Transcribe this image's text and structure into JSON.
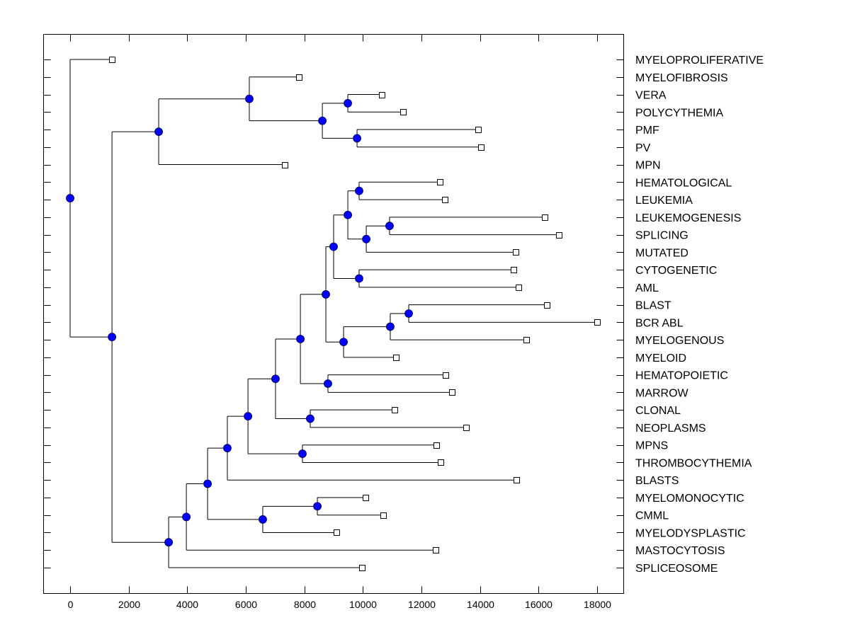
{
  "chart_data": {
    "type": "dendrogram",
    "title": "",
    "xlabel": "",
    "ylabel": "",
    "xlim": [
      -900,
      18900
    ],
    "xticks": [
      0,
      2000,
      4000,
      6000,
      8000,
      10000,
      12000,
      14000,
      16000,
      18000
    ],
    "xtick_labels": [
      "0",
      "2000",
      "4000",
      "6000",
      "8000",
      "10000",
      "12000",
      "14000",
      "16000",
      "18000"
    ],
    "leaf_order": [
      "MYELOPROLIFERATIVE",
      "MYELOFIBROSIS",
      "VERA",
      "POLYCYTHEMIA",
      "PMF",
      "PV",
      "MPN",
      "HEMATOLOGICAL",
      "LEUKEMIA",
      "LEUKEMOGENESIS",
      "SPLICING",
      "MUTATED",
      "CYTOGENETIC",
      "AML",
      "BLAST",
      "BCR ABL",
      "MYELOGENOUS",
      "MYELOID",
      "HEMATOPOIETIC",
      "MARROW",
      "CLONAL",
      "NEOPLASMS",
      "MPNS",
      "THROMBOCYTHEMIA",
      "BLASTS",
      "MYELOMONOCYTIC",
      "CMML",
      "MYELODYSPLASTIC",
      "MASTOCYTOSIS",
      "SPLICEOSOME"
    ],
    "leaves": {
      "MYELOPROLIFERATIVE": 1430,
      "MYELOFIBROSIS": 7815,
      "VERA": 10645,
      "POLYCYTHEMIA": 11370,
      "PMF": 13935,
      "PV": 14030,
      "MPN": 7330,
      "HEMATOLOGICAL": 12630,
      "LEUKEMIA": 12800,
      "LEUKEMOGENESIS": 16210,
      "SPLICING": 16695,
      "MUTATED": 15220,
      "CYTOGENETIC": 15145,
      "AML": 15315,
      "BLAST": 16285,
      "BCR ABL": 18000,
      "MYELOGENOUS": 15580,
      "MYELOID": 11130,
      "HEMATOPOIETIC": 12825,
      "MARROW": 13040,
      "CLONAL": 11080,
      "NEOPLASMS": 13525,
      "MPNS": 12510,
      "THROMBOCYTHEMIA": 12655,
      "BLASTS": 15245,
      "MYELOMONOCYTIC": 10090,
      "CMML": 10695,
      "MYELODYSPLASTIC": 9100,
      "MASTOCYTOSIS": 12485,
      "SPLICEOSOME": 9970
    },
    "tree": {
      "x": 0,
      "children": [
        {
          "leaf": "MYELOPROLIFERATIVE"
        },
        {
          "x": 1430,
          "children": [
            {
              "x": 3025,
              "children": [
                {
                  "x": 6120,
                  "children": [
                    {
                      "leaf": "MYELOFIBROSIS"
                    },
                    {
                      "x": 8615,
                      "children": [
                        {
                          "x": 9485,
                          "children": [
                            {
                              "leaf": "VERA"
                            },
                            {
                              "leaf": "POLYCYTHEMIA"
                            }
                          ]
                        },
                        {
                          "x": 9800,
                          "children": [
                            {
                              "leaf": "PMF"
                            },
                            {
                              "leaf": "PV"
                            }
                          ]
                        }
                      ]
                    }
                  ]
                },
                {
                  "leaf": "MPN"
                }
              ]
            },
            {
              "x": 3365,
              "children": [
                {
                  "x": 3970,
                  "children": [
                    {
                      "x": 4695,
                      "children": [
                        {
                          "x": 5370,
                          "children": [
                            {
                              "x": 6075,
                              "children": [
                                {
                                  "x": 7015,
                                  "children": [
                                    {
                                      "x": 7865,
                                      "children": [
                                        {
                                          "x": 8735,
                                          "children": [
                                            {
                                              "x": 9000,
                                              "children": [
                                                {
                                                  "x": 9485,
                                                  "children": [
                                                    {
                                                      "x": 9870,
                                                      "children": [
                                                        {
                                                          "leaf": "HEMATOLOGICAL"
                                                        },
                                                        {
                                                          "leaf": "LEUKEMIA"
                                                        }
                                                      ]
                                                    },
                                                    {
                                                      "x": 10115,
                                                      "children": [
                                                        {
                                                          "x": 10910,
                                                          "children": [
                                                            {
                                                              "leaf": "LEUKEMOGENESIS"
                                                            },
                                                            {
                                                              "leaf": "SPLICING"
                                                            }
                                                          ]
                                                        },
                                                        {
                                                          "leaf": "MUTATED"
                                                        }
                                                      ]
                                                    }
                                                  ]
                                                },
                                                {
                                                  "x": 9870,
                                                  "children": [
                                                    {
                                                      "leaf": "CYTOGENETIC"
                                                    },
                                                    {
                                                      "leaf": "AML"
                                                    }
                                                  ]
                                                }
                                              ]
                                            },
                                            {
                                              "x": 9340,
                                              "children": [
                                                {
                                                  "x": 10935,
                                                  "children": [
                                                    {
                                                      "x": 11565,
                                                      "children": [
                                                        {
                                                          "leaf": "BLAST"
                                                        },
                                                        {
                                                          "leaf": "BCR ABL"
                                                        }
                                                      ]
                                                    },
                                                    {
                                                      "leaf": "MYELOGENOUS"
                                                    }
                                                  ]
                                                },
                                                {
                                                  "leaf": "MYELOID"
                                                }
                                              ]
                                            }
                                          ]
                                        },
                                        {
                                          "x": 8805,
                                          "children": [
                                            {
                                              "leaf": "HEMATOPOIETIC"
                                            },
                                            {
                                              "leaf": "MARROW"
                                            }
                                          ]
                                        }
                                      ]
                                    },
                                    {
                                      "x": 8200,
                                      "children": [
                                        {
                                          "leaf": "CLONAL"
                                        },
                                        {
                                          "leaf": "NEOPLASMS"
                                        }
                                      ]
                                    }
                                  ]
                                },
                                {
                                  "x": 7935,
                                  "children": [
                                    {
                                      "leaf": "MPNS"
                                    },
                                    {
                                      "leaf": "THROMBOCYTHEMIA"
                                    }
                                  ]
                                }
                              ]
                            },
                            {
                              "leaf": "BLASTS"
                            }
                          ]
                        },
                        {
                          "x": 6580,
                          "children": [
                            {
                              "x": 8445,
                              "children": [
                                {
                                  "leaf": "MYELOMONOCYTIC"
                                },
                                {
                                  "leaf": "CMML"
                                }
                              ]
                            },
                            {
                              "leaf": "MYELODYSPLASTIC"
                            }
                          ]
                        }
                      ]
                    },
                    {
                      "leaf": "MASTOCYTOSIS"
                    }
                  ]
                },
                {
                  "leaf": "SPLICEOSOME"
                }
              ]
            }
          ]
        }
      ]
    },
    "colors": {
      "internal_node": "#0000ff",
      "leaf_marker": "#ffffff",
      "line": "#000000",
      "background": "#ffffff"
    }
  }
}
